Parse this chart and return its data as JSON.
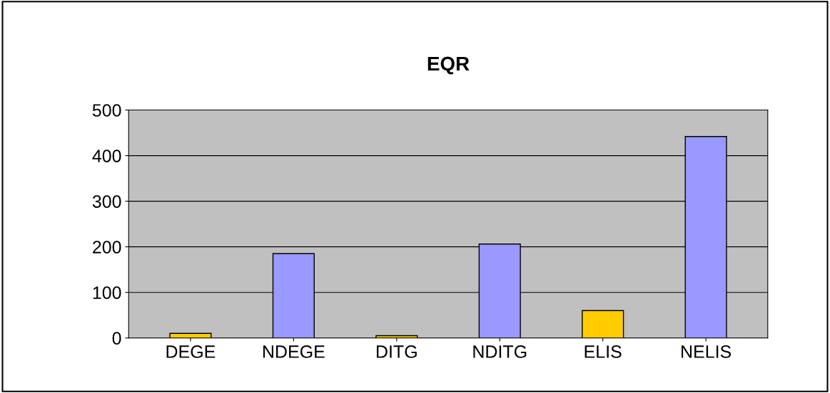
{
  "chart_data": {
    "type": "bar",
    "title": "EQR",
    "categories": [
      "DEGE",
      "NDEGE",
      "DITG",
      "NDITG",
      "ELIS",
      "NELIS"
    ],
    "values": [
      10,
      185,
      5,
      206,
      60,
      442
    ],
    "colors": [
      "#ffcc00",
      "#9999ff",
      "#ffcc00",
      "#9999ff",
      "#ffcc00",
      "#9999ff"
    ],
    "ylim": [
      0,
      500
    ],
    "yticks": [
      0,
      100,
      200,
      300,
      400,
      500
    ],
    "grid": "y",
    "legend": false
  }
}
